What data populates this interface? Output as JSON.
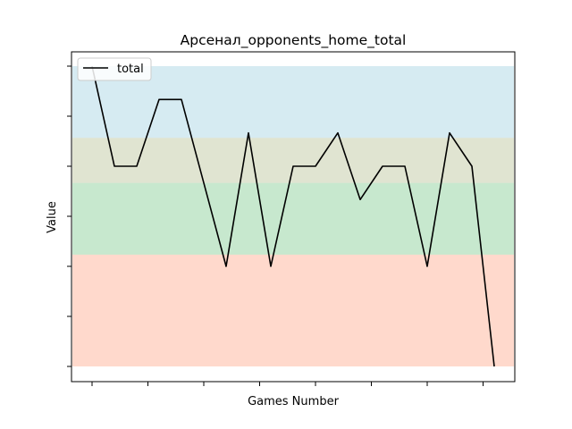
{
  "chart_data": {
    "type": "line",
    "title": "Арсенал_opponents_home_total",
    "xlabel": "Games Number",
    "ylabel": "Value",
    "x": [
      1,
      2,
      3,
      4,
      5,
      6,
      7,
      8,
      9,
      10,
      11,
      12,
      13,
      14,
      15,
      16,
      17,
      18,
      19
    ],
    "series": [
      {
        "name": "total",
        "color": "#000000",
        "values": [
          6,
          3,
          3,
          5,
          5,
          2.5,
          0,
          4,
          0,
          3,
          3,
          4,
          2,
          3,
          3,
          0,
          4,
          3,
          -3
        ]
      }
    ],
    "ylim": [
      -3,
      6
    ],
    "xlim": [
      1,
      19
    ],
    "legend_position": "top-left",
    "grid": false,
    "tick_labels_visible": false,
    "bands": [
      {
        "from": 3.85,
        "to": 6,
        "color": "#add8e6"
      },
      {
        "from": 2.5,
        "to": 3.85,
        "color": "#c2c9a4"
      },
      {
        "from": 0.35,
        "to": 2.5,
        "color": "#8fd19e"
      },
      {
        "from": -3,
        "to": 0.35,
        "color": "#ffb399"
      }
    ],
    "band_opacity": 0.5
  }
}
